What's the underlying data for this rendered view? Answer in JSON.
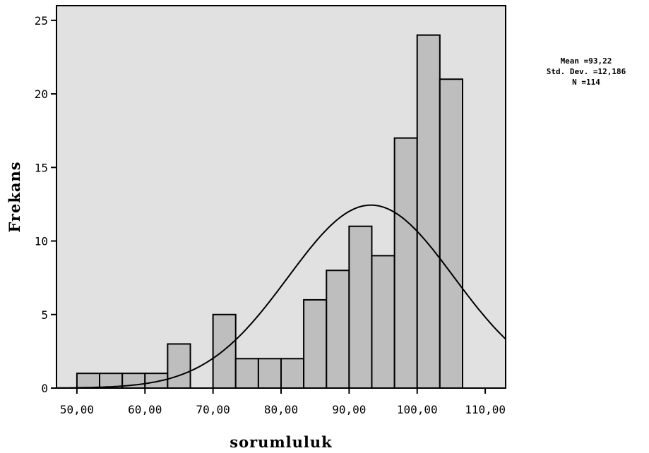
{
  "chart_data": {
    "type": "bar",
    "subtype": "histogram",
    "xlabel": "sorumluluk",
    "ylabel": "Frekans",
    "xlim": [
      47,
      113
    ],
    "ylim": [
      0,
      26
    ],
    "x_ticks": [
      50,
      60,
      70,
      80,
      90,
      100,
      110
    ],
    "x_tick_labels": [
      "50,00",
      "60,00",
      "70,00",
      "80,00",
      "90,00",
      "100,00",
      "110,00"
    ],
    "y_ticks": [
      0,
      5,
      10,
      15,
      20,
      25
    ],
    "y_tick_labels": [
      "0",
      "5",
      "10",
      "15",
      "20",
      "25"
    ],
    "bins": [
      {
        "start": 50.0,
        "end": 53.33,
        "value": 1
      },
      {
        "start": 53.33,
        "end": 56.67,
        "value": 1
      },
      {
        "start": 56.67,
        "end": 60.0,
        "value": 1
      },
      {
        "start": 60.0,
        "end": 63.33,
        "value": 1
      },
      {
        "start": 63.33,
        "end": 66.67,
        "value": 3
      },
      {
        "start": 66.67,
        "end": 70.0,
        "value": 0
      },
      {
        "start": 70.0,
        "end": 73.33,
        "value": 5
      },
      {
        "start": 73.33,
        "end": 76.67,
        "value": 2
      },
      {
        "start": 76.67,
        "end": 80.0,
        "value": 2
      },
      {
        "start": 80.0,
        "end": 83.33,
        "value": 2
      },
      {
        "start": 83.33,
        "end": 86.67,
        "value": 6
      },
      {
        "start": 86.67,
        "end": 90.0,
        "value": 8
      },
      {
        "start": 90.0,
        "end": 93.33,
        "value": 11
      },
      {
        "start": 93.33,
        "end": 96.67,
        "value": 9
      },
      {
        "start": 96.67,
        "end": 100.0,
        "value": 17
      },
      {
        "start": 100.0,
        "end": 103.33,
        "value": 24
      },
      {
        "start": 103.33,
        "end": 106.67,
        "value": 21
      }
    ],
    "normal_curve": {
      "mean": 93.22,
      "sd": 12.186,
      "n": 114,
      "bin_width": 3.333
    },
    "stats_lines": [
      "Mean =93,22",
      "Std. Dev. =12,186",
      "N =114"
    ],
    "colors": {
      "plot_background": "#e1e1e1",
      "bar_fill": "#bebebe",
      "bar_stroke": "#000000",
      "curve": "#000000"
    },
    "grid": false
  }
}
